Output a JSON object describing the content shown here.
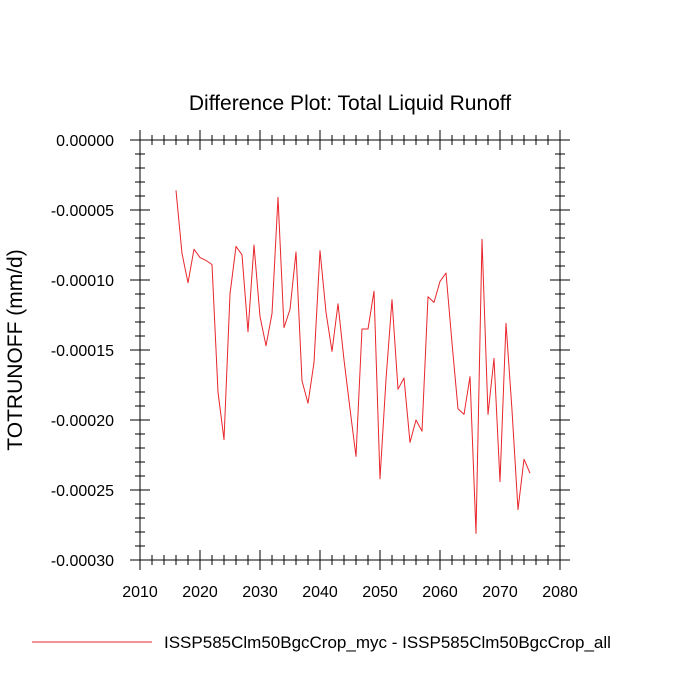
{
  "chart_data": {
    "type": "line",
    "title": "Difference Plot: Total Liquid Runoff",
    "xlabel": "",
    "ylabel": "TOTRUNOFF  (mm/d)",
    "xlim": [
      2010,
      2080
    ],
    "ylim": [
      -0.0003,
      0.0
    ],
    "x_ticks": [
      2010,
      2020,
      2030,
      2040,
      2050,
      2060,
      2070,
      2080
    ],
    "x_tick_labels": [
      "2010",
      "2020",
      "2030",
      "2040",
      "2050",
      "2060",
      "2070",
      "2080"
    ],
    "y_ticks": [
      0.0,
      -5e-05,
      -0.0001,
      -0.00015,
      -0.0002,
      -0.00025,
      -0.0003
    ],
    "y_tick_labels": [
      "0.00000",
      "-0.00005",
      "-0.00010",
      "-0.00015",
      "-0.00020",
      "-0.00025",
      "-0.00030"
    ],
    "grid": false,
    "legend_position": "bottom",
    "series": [
      {
        "name": "ISSP585Clm50BgcCrop_myc - ISSP585Clm50BgcCrop_all",
        "color": "#e8262b",
        "x": [
          2016,
          2017,
          2018,
          2019,
          2020,
          2021,
          2022,
          2023,
          2024,
          2025,
          2026,
          2027,
          2028,
          2029,
          2030,
          2031,
          2032,
          2033,
          2034,
          2035,
          2036,
          2037,
          2038,
          2039,
          2040,
          2041,
          2042,
          2043,
          2044,
          2045,
          2046,
          2047,
          2048,
          2049,
          2050,
          2051,
          2052,
          2053,
          2054,
          2055,
          2056,
          2057,
          2058,
          2059,
          2060,
          2061,
          2062,
          2063,
          2064,
          2065,
          2066,
          2067,
          2068,
          2069,
          2070,
          2071,
          2072,
          2073,
          2074,
          2075
        ],
        "values": [
          -3.6e-05,
          -8.1e-05,
          -0.000102,
          -7.8e-05,
          -8.4e-05,
          -8.6e-05,
          -8.9e-05,
          -0.00018,
          -0.000214,
          -0.00011,
          -7.6e-05,
          -8.2e-05,
          -0.000137,
          -7.5e-05,
          -0.000126,
          -0.000147,
          -0.000124,
          -4.1e-05,
          -0.000134,
          -0.000121,
          -8e-05,
          -0.000172,
          -0.000188,
          -0.000159,
          -7.9e-05,
          -0.000123,
          -0.000151,
          -0.000117,
          -0.000157,
          -0.000192,
          -0.000226,
          -0.000135,
          -0.000135,
          -0.000108,
          -0.000242,
          -0.000171,
          -0.000114,
          -0.000178,
          -0.00017,
          -0.000216,
          -0.0002,
          -0.000208,
          -0.000112,
          -0.000116,
          -0.000101,
          -9.5e-05,
          -0.000145,
          -0.000192,
          -0.000196,
          -0.000169,
          -0.000281,
          -7.1e-05,
          -0.000196,
          -0.000156,
          -0.000244,
          -0.000131,
          -0.000193,
          -0.000264,
          -0.000228,
          -0.000238
        ]
      }
    ]
  }
}
